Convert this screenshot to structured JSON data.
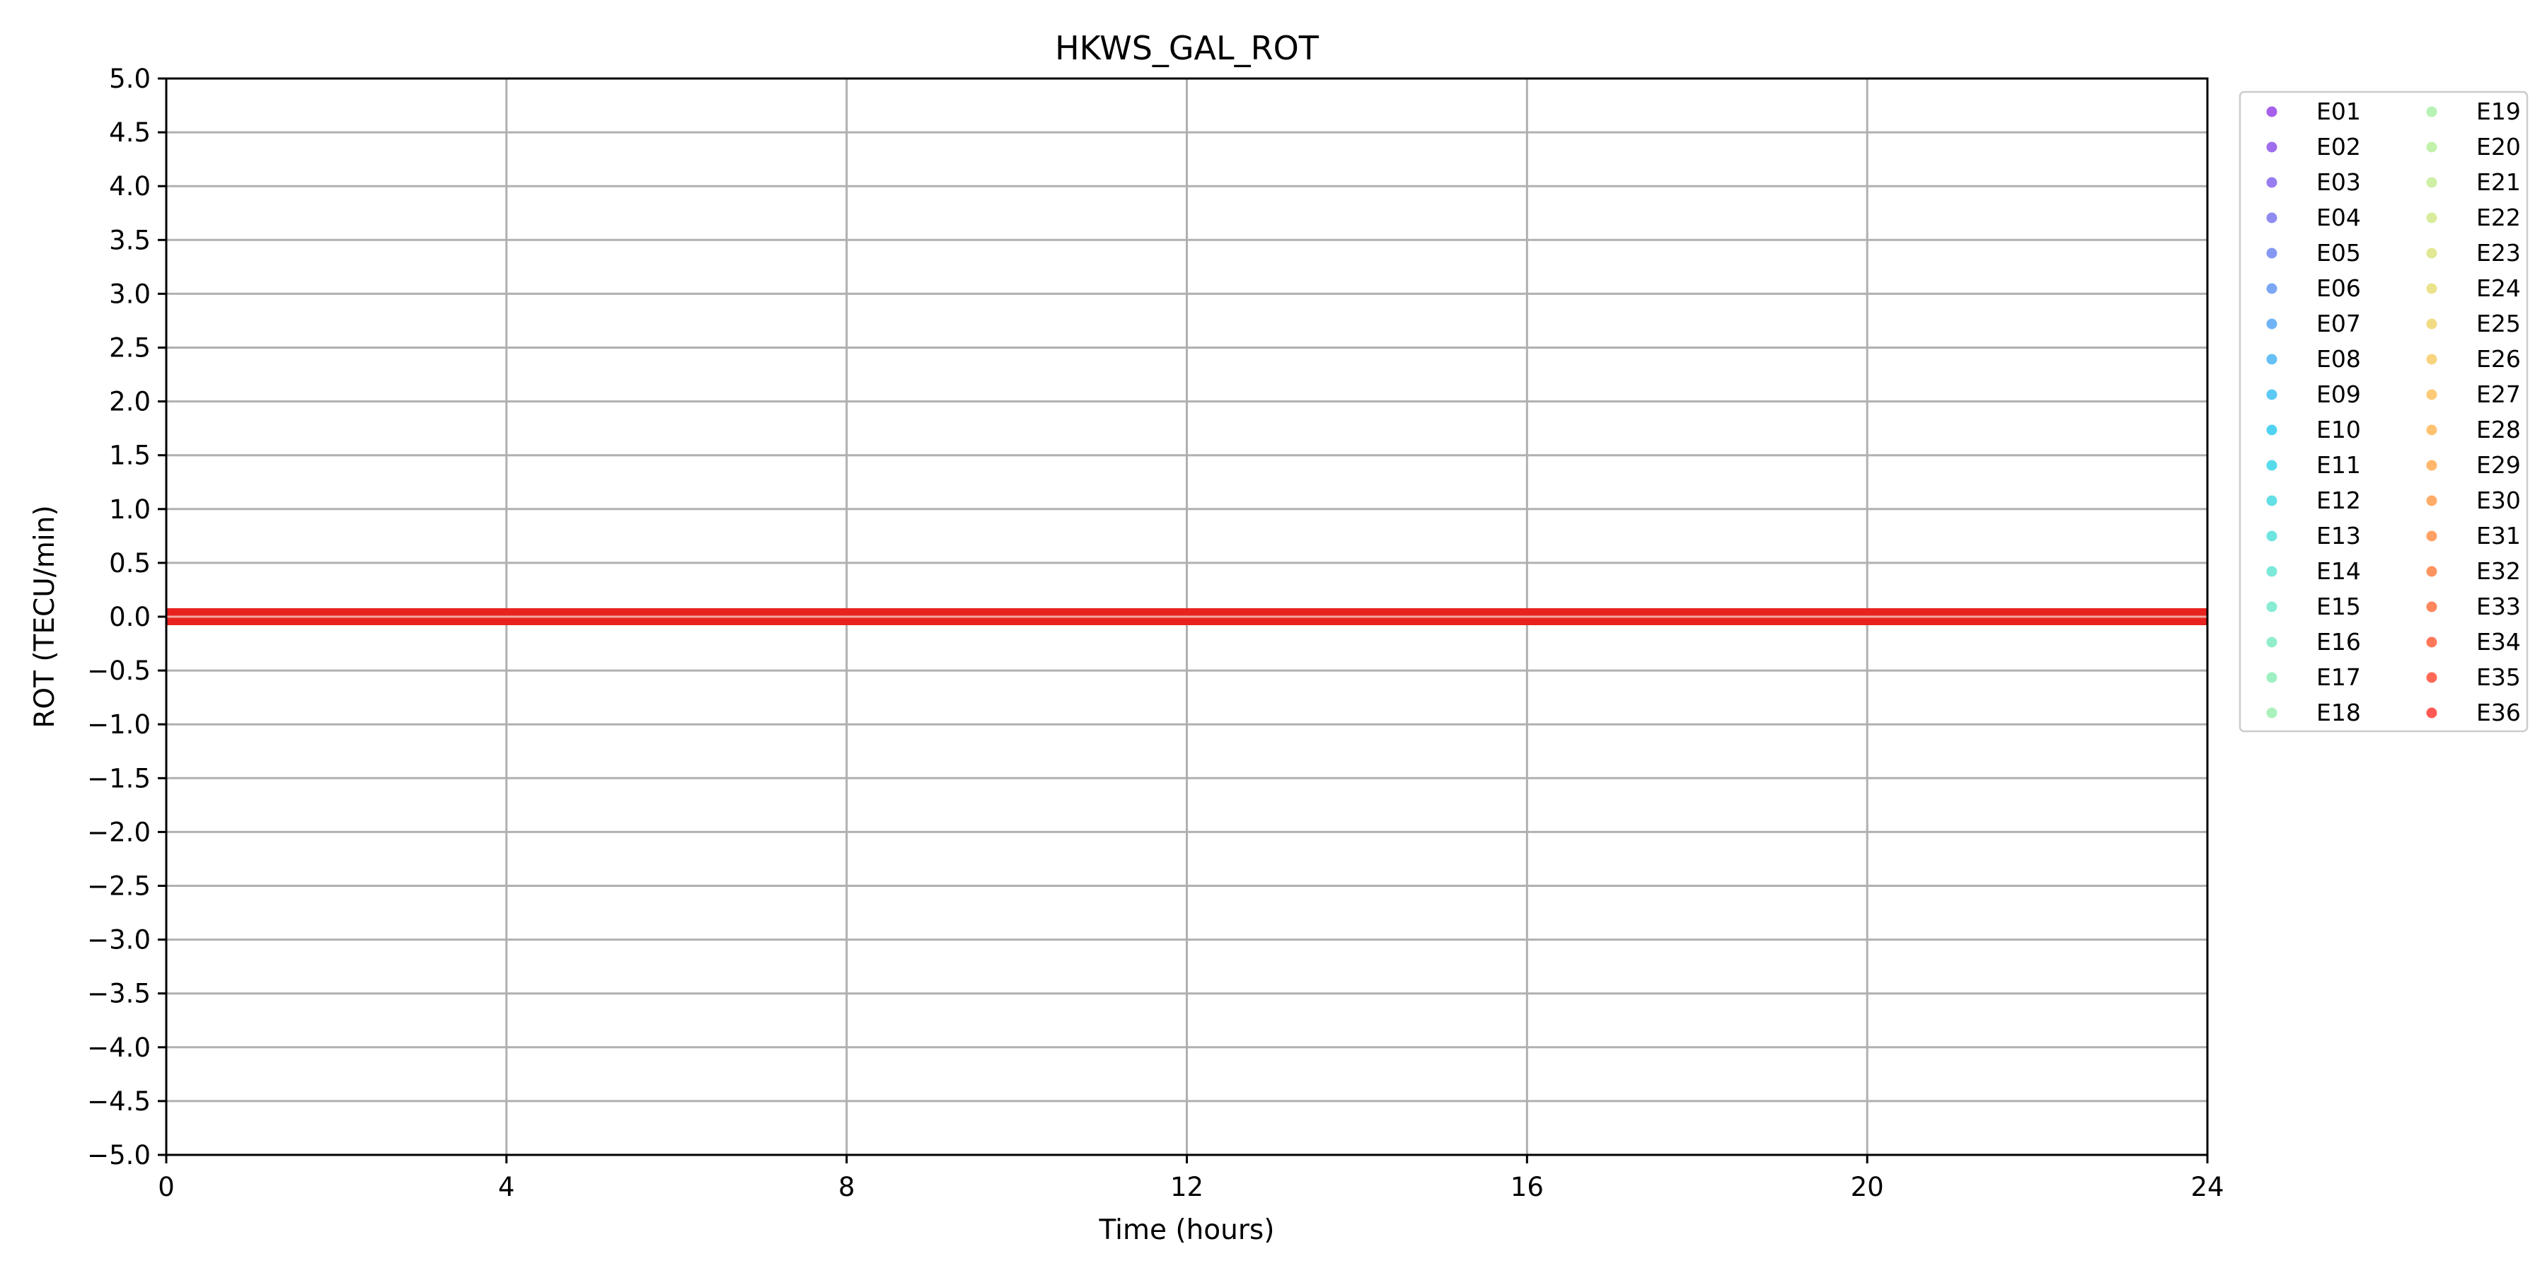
{
  "chart_data": {
    "type": "scatter",
    "title": "HKWS_GAL_ROT",
    "xlabel": "Time (hours)",
    "ylabel": "ROT (TECU/min)",
    "xlim": [
      0,
      24
    ],
    "ylim": [
      -5.0,
      5.0
    ],
    "x_ticks": [
      0,
      4,
      8,
      12,
      16,
      20,
      24
    ],
    "y_ticks": [
      5.0,
      4.5,
      4.0,
      3.5,
      3.0,
      2.5,
      2.0,
      1.5,
      1.0,
      0.5,
      0.0,
      -0.5,
      -1.0,
      -1.5,
      -2.0,
      -2.5,
      -3.0,
      -3.5,
      -4.0,
      -4.5,
      -5.0
    ],
    "x_tick_labels": [
      "0",
      "4",
      "8",
      "12",
      "16",
      "20",
      "24"
    ],
    "y_tick_labels": [
      "5.0",
      "4.5",
      "4.0",
      "3.5",
      "3.0",
      "2.5",
      "2.0",
      "1.5",
      "1.0",
      "0.5",
      "0.0",
      "−0.5",
      "−1.0",
      "−1.5",
      "−2.0",
      "−2.5",
      "−3.0",
      "−3.5",
      "−4.0",
      "−4.5",
      "−5.0"
    ],
    "grid": true,
    "legend_placement": "outside-right",
    "legend_columns": 2,
    "zero_band": {
      "y": 0.0,
      "color": "#e8231e",
      "x_range": [
        0,
        24
      ]
    },
    "series": [
      {
        "name": "E01",
        "color": "#8a2be2"
      },
      {
        "name": "E02",
        "color": "#7f3ee6"
      },
      {
        "name": "E03",
        "color": "#7451e9"
      },
      {
        "name": "E04",
        "color": "#6a64ec"
      },
      {
        "name": "E05",
        "color": "#5e77ee"
      },
      {
        "name": "E06",
        "color": "#4f8af0"
      },
      {
        "name": "E07",
        "color": "#419bf1"
      },
      {
        "name": "E08",
        "color": "#33aaf2"
      },
      {
        "name": "E09",
        "color": "#24b8f0"
      },
      {
        "name": "E10",
        "color": "#16c4ed"
      },
      {
        "name": "E11",
        "color": "#1ecfe6"
      },
      {
        "name": "E12",
        "color": "#2ed6de"
      },
      {
        "name": "E13",
        "color": "#3fdcd6"
      },
      {
        "name": "E14",
        "color": "#4fe1cd"
      },
      {
        "name": "E15",
        "color": "#5fe5c3"
      },
      {
        "name": "E16",
        "color": "#6ee8b8"
      },
      {
        "name": "E17",
        "color": "#7eebae"
      },
      {
        "name": "E18",
        "color": "#8eeca4"
      },
      {
        "name": "E19",
        "color": "#9eed9a"
      },
      {
        "name": "E20",
        "color": "#aeec90"
      },
      {
        "name": "E21",
        "color": "#bde985"
      },
      {
        "name": "E22",
        "color": "#cbe57b"
      },
      {
        "name": "E23",
        "color": "#d8df70"
      },
      {
        "name": "E24",
        "color": "#e4d866"
      },
      {
        "name": "E25",
        "color": "#eecf5c"
      },
      {
        "name": "E26",
        "color": "#f6c553"
      },
      {
        "name": "E27",
        "color": "#fcba4a"
      },
      {
        "name": "E28",
        "color": "#ffad42"
      },
      {
        "name": "E29",
        "color": "#ff9f3b"
      },
      {
        "name": "E30",
        "color": "#ff9035"
      },
      {
        "name": "E31",
        "color": "#ff8030"
      },
      {
        "name": "E32",
        "color": "#ff6f2b"
      },
      {
        "name": "E33",
        "color": "#ff5d27"
      },
      {
        "name": "E34",
        "color": "#ff4a22"
      },
      {
        "name": "E35",
        "color": "#ff371e"
      },
      {
        "name": "E36",
        "color": "#ff221a"
      }
    ]
  }
}
